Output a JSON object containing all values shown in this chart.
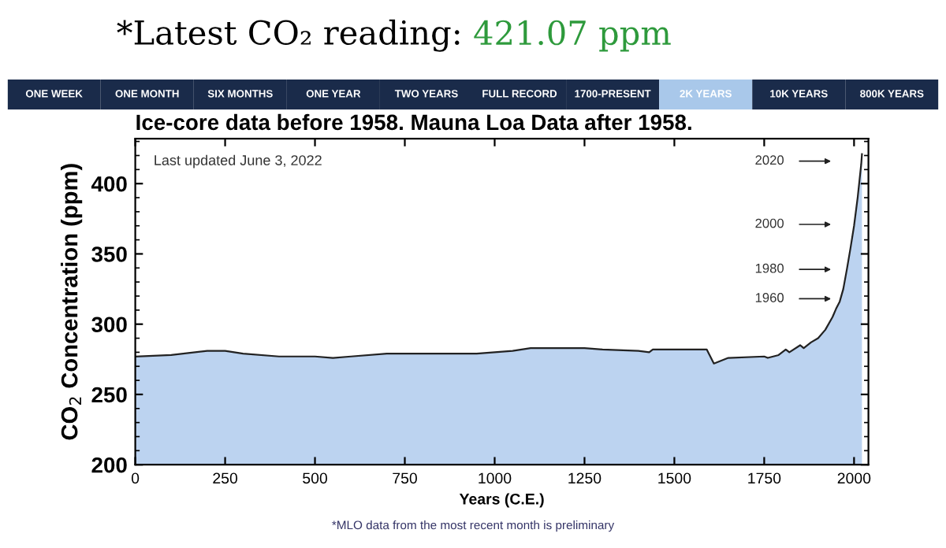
{
  "chart_data": {
    "type": "area",
    "title": "*Latest CO₂ reading:",
    "subtitle": "Ice-core data before 1958. Mauna Loa Data after 1958.",
    "xlabel": "Years (C.E.)",
    "ylabel": "CO$_{2}$ Concentration (ppm)",
    "annotations": [
      "421.07 ppm",
      "Last updated June 3, 2022",
      "ONE WEEK",
      "ONE MONTH",
      "SIX MONTHS",
      "ONE YEAR",
      "TWO YEARS",
      "FULL RECORD",
      "1700-PRESENT",
      "2K YEARS",
      "10K YEARS",
      "800K YEARS",
      "2020",
      "2000",
      "1980",
      "1960",
      "*MLO data from the most recent month is preliminary"
    ],
    "x": [
      0,
      100,
      200,
      250,
      300,
      400,
      500,
      550,
      600,
      700,
      800,
      950,
      1050,
      1100,
      1250,
      1300,
      1400,
      1430,
      1440,
      1590,
      1610,
      1650,
      1750,
      1760,
      1790,
      1810,
      1820,
      1850,
      1860,
      1880,
      1900,
      1920,
      1940,
      1950,
      1960,
      1970,
      1980,
      1990,
      2000,
      2010,
      2020,
      2022
    ],
    "series": [
      {
        "color": "#bcd3f0",
        "values": [
          277,
          278,
          281,
          281,
          279,
          277,
          277,
          276,
          277,
          279,
          279,
          279,
          281,
          283,
          283,
          282,
          281,
          280,
          282,
          282,
          272,
          276,
          277,
          276,
          278,
          282,
          280,
          285,
          283,
          287,
          290,
          296,
          305,
          311,
          316,
          325,
          339,
          354,
          370,
          390,
          414,
          421
        ]
      }
    ],
    "xlim": [
      0,
      2040
    ],
    "ylim": [
      200,
      432
    ],
    "xticks": [
      0,
      250,
      500,
      750,
      1000,
      1250,
      1500,
      1750,
      2000
    ],
    "yticks": [
      200,
      250,
      300,
      350,
      400
    ],
    "grid": false
  }
}
